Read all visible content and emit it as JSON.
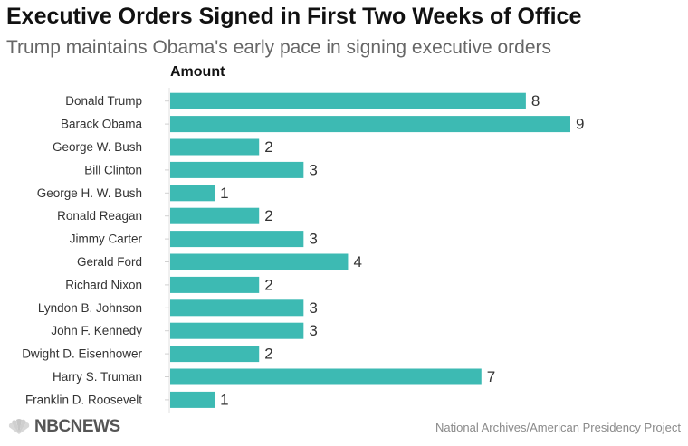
{
  "chart_data": {
    "type": "bar",
    "orientation": "horizontal",
    "title": "Executive Orders Signed in First Two Weeks of Office",
    "subtitle": "Trump maintains Obama's early pace in signing executive orders",
    "series_label": "Amount",
    "categories": [
      "Donald Trump",
      "Barack Obama",
      "George W. Bush",
      "Bill Clinton",
      "George H. W. Bush",
      "Ronald Reagan",
      "Jimmy Carter",
      "Gerald Ford",
      "Richard Nixon",
      "Lyndon B. Johnson",
      "John F. Kennedy",
      "Dwight D. Eisenhower",
      "Harry S. Truman",
      "Franklin D. Roosevelt"
    ],
    "values": [
      8,
      9,
      2,
      3,
      1,
      2,
      3,
      4,
      2,
      3,
      3,
      2,
      7,
      1
    ],
    "xlim": [
      0,
      9
    ],
    "bar_color": "#3dbab3",
    "grid": false,
    "legend": "none"
  },
  "footer": {
    "brand": "NBCNEWS",
    "source": "National Archives/American Presidency Project"
  }
}
